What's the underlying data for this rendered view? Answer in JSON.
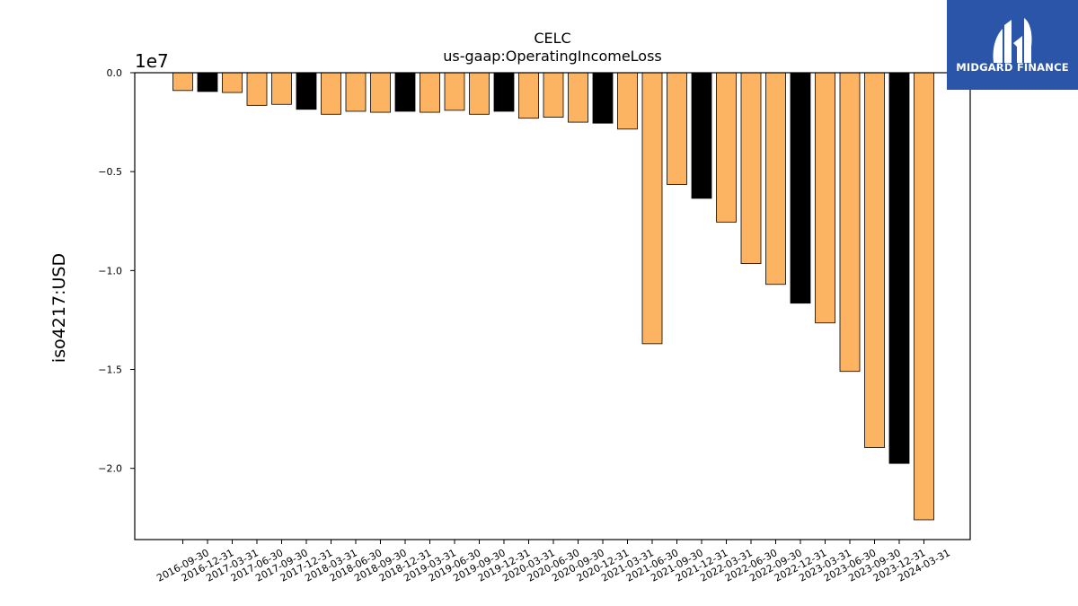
{
  "chart_data": {
    "type": "bar",
    "title": "CELC",
    "subtitle": "us-gaap:OperatingIncomeLoss",
    "ylabel": "iso4217:USD",
    "xlabel": "",
    "y_offset_label": "1e7",
    "ylim": [
      -2.36,
      0
    ],
    "yticks": [
      0.0,
      -0.5,
      -1.0,
      -1.5,
      -2.0
    ],
    "ytick_labels": [
      "0.0",
      "−0.5",
      "−1.0",
      "−1.5",
      "−2.0"
    ],
    "grid": false,
    "categories": [
      "2016-09-30",
      "2016-12-31",
      "2017-03-31",
      "2017-06-30",
      "2017-09-30",
      "2017-12-31",
      "2018-03-31",
      "2018-06-30",
      "2018-09-30",
      "2018-12-31",
      "2019-03-31",
      "2019-06-30",
      "2019-09-30",
      "2019-12-31",
      "2020-03-31",
      "2020-06-30",
      "2020-09-30",
      "2020-12-31",
      "2021-03-31",
      "2021-06-30",
      "2021-09-30",
      "2021-12-31",
      "2022-03-31",
      "2022-06-30",
      "2022-09-30",
      "2022-12-31",
      "2023-03-31",
      "2023-06-30",
      "2023-09-30",
      "2023-12-31",
      "2024-03-31"
    ],
    "values": [
      -0.09,
      -0.095,
      -0.1,
      -0.165,
      -0.16,
      -0.185,
      -0.21,
      -0.195,
      -0.2,
      -0.195,
      -0.2,
      -0.19,
      -0.21,
      -0.195,
      -0.23,
      -0.225,
      -0.25,
      -0.255,
      -0.285,
      -1.37,
      -0.565,
      -0.635,
      -0.755,
      -0.965,
      -1.07,
      -1.165,
      -1.265,
      -1.51,
      -1.895,
      -1.975,
      -2.26
    ],
    "bar_colors": [
      "#FDB462",
      "#000000",
      "#FDB462",
      "#FDB462",
      "#FDB462",
      "#000000",
      "#FDB462",
      "#FDB462",
      "#FDB462",
      "#000000",
      "#FDB462",
      "#FDB462",
      "#FDB462",
      "#000000",
      "#FDB462",
      "#FDB462",
      "#FDB462",
      "#000000",
      "#FDB462",
      "#FDB462",
      "#FDB462",
      "#000000",
      "#FDB462",
      "#FDB462",
      "#FDB462",
      "#000000",
      "#FDB462",
      "#FDB462",
      "#FDB462",
      "#000000",
      "#FDB462"
    ]
  },
  "logo": {
    "text": "MIDGARD FINANCE",
    "background": "#2A55A8"
  }
}
